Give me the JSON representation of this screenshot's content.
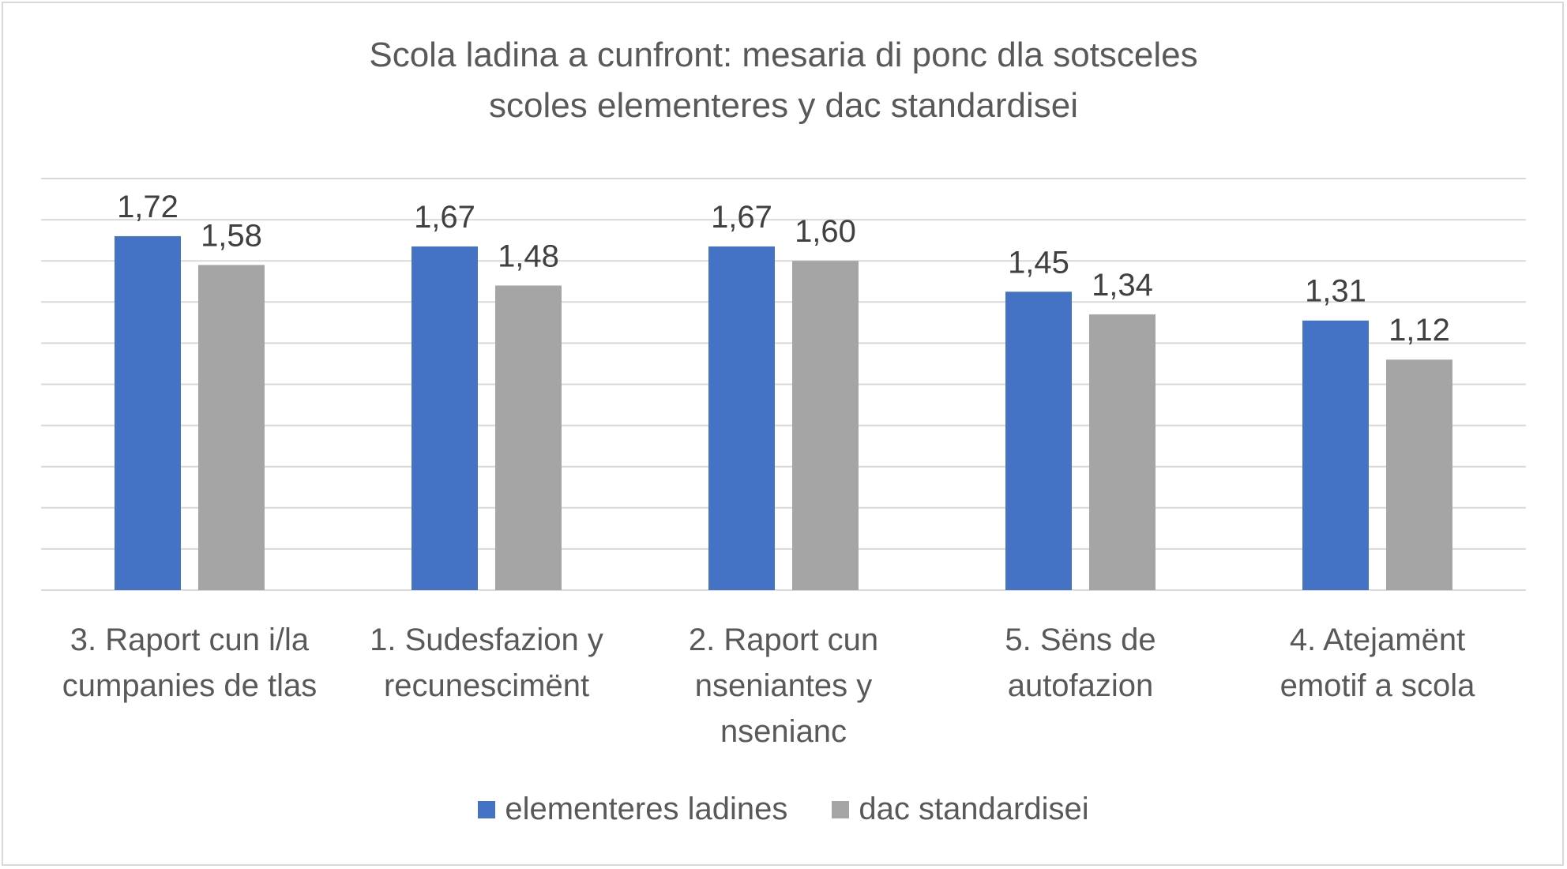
{
  "chart_data": {
    "type": "bar",
    "title_lines": [
      "Scola ladina a cunfront: mesaria di ponc dla sotsceles",
      "scoles elementeres  y dac standardisei"
    ],
    "categories": [
      [
        "3. Raport cun i/la",
        "cumpanies de tlas"
      ],
      [
        "1. Sudesfazion y",
        "recunescimënt"
      ],
      [
        "2. Raport cun",
        "nseniantes y",
        "nsenianc"
      ],
      [
        "5. Sëns de",
        "autofazion"
      ],
      [
        "4. Atejamënt",
        "emotif a scola"
      ]
    ],
    "series": [
      {
        "name": "elementeres ladines",
        "color": "#4472c4",
        "values": [
          1.72,
          1.67,
          1.67,
          1.45,
          1.31
        ],
        "labels": [
          "1,72",
          "1,67",
          "1,67",
          "1,45",
          "1,31"
        ]
      },
      {
        "name": "dac standardisei",
        "color": "#a5a5a5",
        "values": [
          1.58,
          1.48,
          1.6,
          1.34,
          1.12
        ],
        "labels": [
          "1,58",
          "1,48",
          "1,60",
          "1,34",
          "1,12"
        ]
      }
    ],
    "ylim": [
      0,
      2
    ],
    "gridlines": 10,
    "y_tick_labels_visible": false,
    "legend_position": "bottom"
  }
}
